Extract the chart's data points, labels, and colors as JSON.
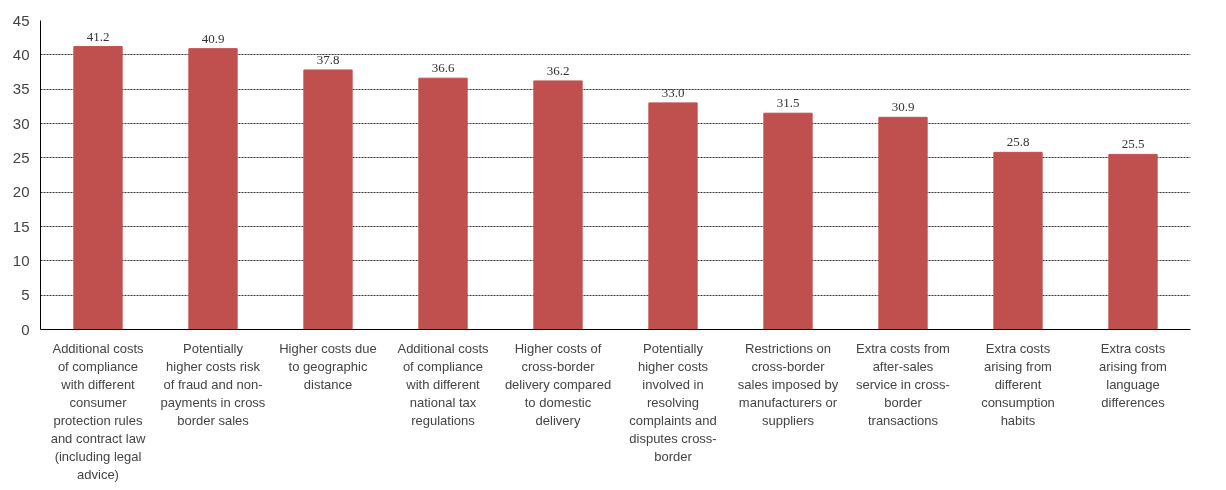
{
  "chart_data": {
    "type": "bar",
    "categories": [
      "Additional costs of compliance with different consumer protection rules and contract law (including legal advice)",
      "Potentially higher costs risk of fraud and non-payments in cross border sales",
      "Higher costs due to geographic distance",
      "Additional costs of compliance with different national tax regulations",
      "Higher costs of cross-border delivery compared to domestic delivery",
      "Potentially higher costs involved in resolving complaints and disputes cross-border",
      "Restrictions on cross-border sales imposed by manufacturers or suppliers",
      "Extra costs from after-sales service in cross-border transactions",
      "Extra costs arising from different consumption habits",
      "Extra costs arising from language differences"
    ],
    "values": [
      41.2,
      40.9,
      37.8,
      36.6,
      36.2,
      33.0,
      31.5,
      30.9,
      25.8,
      25.5
    ],
    "value_labels": [
      "41.2",
      "40.9",
      "37.8",
      "36.6",
      "36.2",
      "33.0",
      "31.5",
      "30.9",
      "25.8",
      "25.5"
    ],
    "color": "#c0504d",
    "ylim": [
      0,
      45
    ],
    "yticks": [
      0,
      5,
      10,
      15,
      20,
      25,
      30,
      35,
      40,
      45
    ],
    "grid": "y"
  }
}
